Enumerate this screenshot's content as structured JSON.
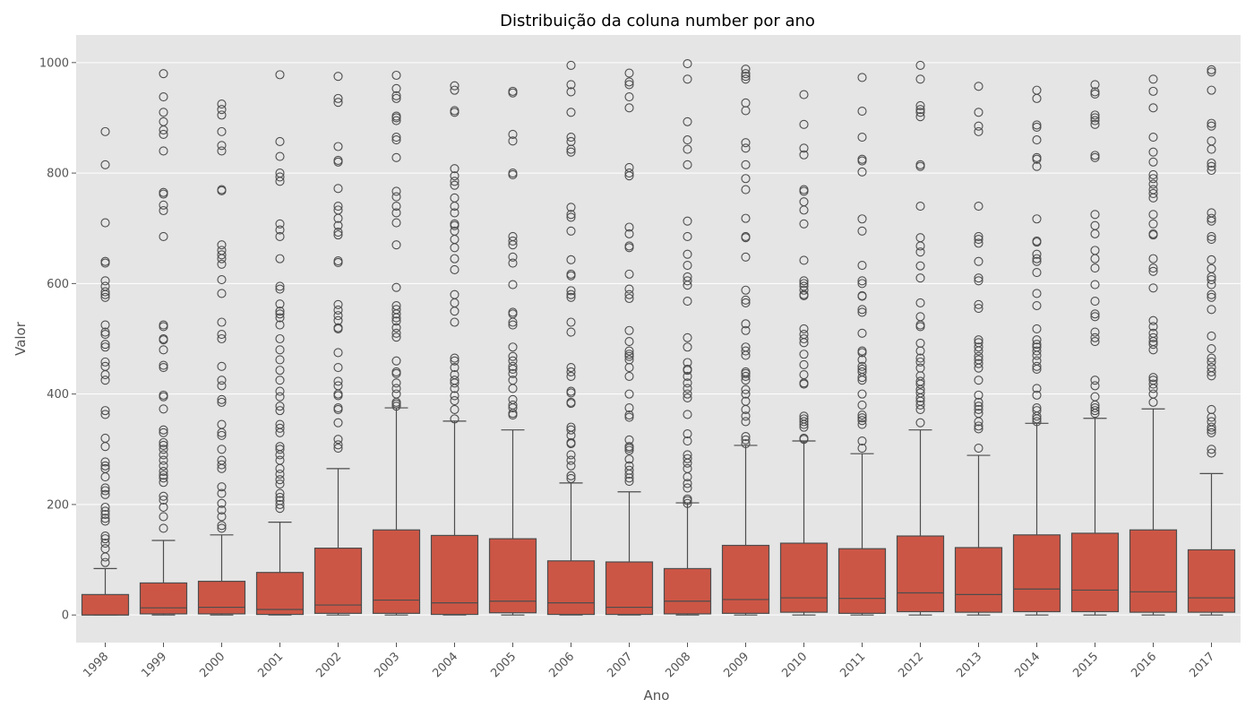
{
  "chart_data": {
    "type": "box",
    "title": "Distribuição da coluna number por ano",
    "xlabel": "Ano",
    "ylabel": "Valor",
    "ylim": [
      -50,
      1050
    ],
    "yticks": [
      0,
      200,
      400,
      600,
      800,
      1000
    ],
    "ytick_labels": [
      "0",
      "200",
      "400",
      "600",
      "800",
      "1000"
    ],
    "categories": [
      "1998",
      "1999",
      "2000",
      "2001",
      "2002",
      "2003",
      "2004",
      "2005",
      "2006",
      "2007",
      "2008",
      "2009",
      "2010",
      "2011",
      "2012",
      "2013",
      "2014",
      "2015",
      "2016",
      "2017"
    ],
    "grid": true,
    "colors": {
      "box_fill": "#cc5645",
      "box_edge": "#4d4d4d",
      "plot_bg": "#e5e5e5",
      "grid": "#ffffff"
    },
    "boxes": [
      {
        "year": "1998",
        "whisker_low": 0,
        "q1": 0,
        "median": 0,
        "q3": 37,
        "whisker_high": 84,
        "outliers": [
          875,
          815,
          710,
          640,
          637,
          605,
          595,
          585,
          580,
          575,
          525,
          512,
          508,
          490,
          485,
          458,
          450,
          435,
          425,
          370,
          363,
          320,
          305,
          277,
          270,
          265,
          250,
          230,
          225,
          218,
          195,
          188,
          182,
          175,
          170,
          143,
          138,
          130,
          120,
          105,
          95
        ]
      },
      {
        "year": "1999",
        "whisker_low": 0,
        "q1": 2,
        "median": 13,
        "q3": 58,
        "whisker_high": 135,
        "outliers": [
          980,
          938,
          910,
          893,
          878,
          870,
          840,
          765,
          762,
          742,
          732,
          685,
          525,
          522,
          500,
          498,
          480,
          452,
          448,
          398,
          395,
          373,
          335,
          330,
          312,
          307,
          300,
          290,
          280,
          270,
          260,
          253,
          248,
          240,
          215,
          208,
          195,
          178,
          157
        ]
      },
      {
        "year": "2000",
        "whisker_low": 0,
        "q1": 2,
        "median": 14,
        "q3": 61,
        "whisker_high": 145,
        "outliers": [
          925,
          915,
          905,
          875,
          850,
          840,
          770,
          768,
          670,
          660,
          652,
          645,
          635,
          607,
          582,
          530,
          508,
          500,
          450,
          425,
          415,
          390,
          385,
          345,
          330,
          325,
          300,
          280,
          272,
          265,
          232,
          220,
          202,
          190,
          178,
          162,
          157
        ]
      },
      {
        "year": "2001",
        "whisker_low": 0,
        "q1": 1,
        "median": 10,
        "q3": 77,
        "whisker_high": 168,
        "outliers": [
          978,
          857,
          830,
          800,
          793,
          785,
          708,
          697,
          685,
          645,
          595,
          590,
          563,
          550,
          545,
          538,
          525,
          500,
          480,
          462,
          443,
          425,
          405,
          395,
          378,
          370,
          345,
          338,
          330,
          305,
          300,
          290,
          280,
          265,
          255,
          245,
          237,
          220,
          213,
          207,
          200,
          193
        ]
      },
      {
        "year": "2002",
        "whisker_low": 0,
        "q1": 3,
        "median": 18,
        "q3": 121,
        "whisker_high": 265,
        "outliers": [
          975,
          935,
          928,
          848,
          823,
          820,
          772,
          740,
          733,
          718,
          705,
          693,
          688,
          641,
          638,
          562,
          552,
          542,
          533,
          520,
          518,
          475,
          448,
          423,
          415,
          400,
          397,
          375,
          372,
          348,
          318,
          308,
          302
        ]
      },
      {
        "year": "2003",
        "whisker_low": 0,
        "q1": 3,
        "median": 27,
        "q3": 154,
        "whisker_high": 375,
        "outliers": [
          977,
          953,
          940,
          935,
          903,
          900,
          895,
          865,
          860,
          828,
          767,
          757,
          740,
          728,
          710,
          670,
          593,
          560,
          553,
          545,
          538,
          532,
          520,
          510,
          503,
          460,
          440,
          437,
          420,
          410,
          400,
          385,
          382,
          378
        ]
      },
      {
        "year": "2004",
        "whisker_low": 0,
        "q1": 1,
        "median": 22,
        "q3": 144,
        "whisker_high": 351,
        "outliers": [
          958,
          950,
          913,
          910,
          808,
          795,
          785,
          778,
          755,
          740,
          728,
          708,
          705,
          695,
          680,
          665,
          645,
          625,
          580,
          565,
          550,
          530,
          465,
          460,
          448,
          435,
          425,
          420,
          410,
          397,
          388,
          372,
          355
        ]
      },
      {
        "year": "2005",
        "whisker_low": 0,
        "q1": 4,
        "median": 25,
        "q3": 138,
        "whisker_high": 335,
        "outliers": [
          948,
          945,
          870,
          858,
          800,
          797,
          685,
          677,
          670,
          648,
          637,
          598,
          548,
          545,
          530,
          525,
          485,
          468,
          460,
          450,
          445,
          437,
          425,
          410,
          390,
          380,
          375,
          365,
          362
        ]
      },
      {
        "year": "2006",
        "whisker_low": 0,
        "q1": 1,
        "median": 22,
        "q3": 98,
        "whisker_high": 239,
        "outliers": [
          995,
          960,
          947,
          910,
          865,
          857,
          843,
          838,
          738,
          725,
          720,
          695,
          643,
          617,
          614,
          587,
          580,
          575,
          530,
          512,
          448,
          440,
          432,
          405,
          402,
          385,
          383,
          340,
          335,
          325,
          312,
          310,
          290,
          280,
          270,
          252,
          247
        ]
      },
      {
        "year": "2007",
        "whisker_low": 0,
        "q1": 1,
        "median": 14,
        "q3": 96,
        "whisker_high": 223,
        "outliers": [
          981,
          965,
          960,
          938,
          918,
          810,
          800,
          795,
          702,
          690,
          668,
          665,
          617,
          590,
          580,
          573,
          515,
          495,
          478,
          472,
          468,
          462,
          448,
          432,
          400,
          375,
          362,
          358,
          317,
          305,
          302,
          298,
          282,
          270,
          262,
          255,
          248,
          242
        ]
      },
      {
        "year": "2008",
        "whisker_low": 0,
        "q1": 2,
        "median": 25,
        "q3": 84,
        "whisker_high": 203,
        "outliers": [
          998,
          970,
          893,
          860,
          843,
          815,
          713,
          685,
          653,
          633,
          612,
          605,
          597,
          568,
          502,
          485,
          457,
          445,
          443,
          432,
          420,
          410,
          400,
          393,
          363,
          328,
          315,
          290,
          283,
          275,
          265,
          250,
          238,
          230,
          210,
          207,
          202
        ]
      },
      {
        "year": "2009",
        "whisker_low": 0,
        "q1": 3,
        "median": 28,
        "q3": 126,
        "whisker_high": 307,
        "outliers": [
          988,
          980,
          975,
          970,
          927,
          913,
          855,
          845,
          815,
          790,
          770,
          718,
          685,
          683,
          648,
          588,
          570,
          565,
          527,
          515,
          485,
          478,
          470,
          440,
          437,
          432,
          425,
          408,
          400,
          387,
          372,
          360,
          350,
          323,
          317,
          310
        ]
      },
      {
        "year": "2010",
        "whisker_low": 0,
        "q1": 5,
        "median": 31,
        "q3": 130,
        "whisker_high": 315,
        "outliers": [
          942,
          888,
          845,
          833,
          770,
          767,
          748,
          733,
          708,
          642,
          605,
          600,
          595,
          588,
          580,
          578,
          518,
          508,
          500,
          493,
          472,
          453,
          435,
          420,
          418,
          360,
          355,
          350,
          345,
          340,
          320,
          318
        ]
      },
      {
        "year": "2011",
        "whisker_low": 0,
        "q1": 3,
        "median": 30,
        "q3": 120,
        "whisker_high": 292,
        "outliers": [
          973,
          912,
          865,
          825,
          822,
          802,
          717,
          695,
          633,
          605,
          600,
          578,
          577,
          553,
          548,
          510,
          478,
          475,
          462,
          450,
          445,
          440,
          430,
          425,
          400,
          380,
          362,
          357,
          352,
          345,
          315,
          302
        ]
      },
      {
        "year": "2012",
        "whisker_low": 0,
        "q1": 6,
        "median": 40,
        "q3": 143,
        "whisker_high": 335,
        "outliers": [
          995,
          970,
          922,
          915,
          910,
          902,
          815,
          812,
          740,
          683,
          668,
          657,
          632,
          610,
          565,
          540,
          525,
          522,
          492,
          478,
          465,
          458,
          447,
          433,
          423,
          418,
          408,
          402,
          393,
          387,
          380,
          372,
          348
        ]
      },
      {
        "year": "2013",
        "whisker_low": 0,
        "q1": 5,
        "median": 37,
        "q3": 122,
        "whisker_high": 289,
        "outliers": [
          957,
          910,
          885,
          875,
          740,
          685,
          680,
          673,
          640,
          610,
          605,
          562,
          555,
          498,
          493,
          485,
          478,
          468,
          462,
          455,
          447,
          425,
          398,
          385,
          378,
          372,
          365,
          350,
          342,
          337,
          302
        ]
      },
      {
        "year": "2014",
        "whisker_low": 0,
        "q1": 6,
        "median": 47,
        "q3": 145,
        "whisker_high": 347,
        "outliers": [
          950,
          935,
          887,
          883,
          860,
          828,
          825,
          812,
          717,
          677,
          675,
          653,
          645,
          640,
          620,
          582,
          560,
          518,
          498,
          490,
          485,
          478,
          470,
          460,
          450,
          445,
          410,
          398,
          375,
          370,
          360,
          355,
          350
        ]
      },
      {
        "year": "2015",
        "whisker_low": 0,
        "q1": 6,
        "median": 45,
        "q3": 148,
        "whisker_high": 356,
        "outliers": [
          960,
          947,
          943,
          905,
          900,
          895,
          888,
          832,
          828,
          725,
          705,
          690,
          660,
          645,
          628,
          598,
          568,
          545,
          540,
          512,
          502,
          495,
          425,
          415,
          395,
          380,
          375,
          370,
          365
        ]
      },
      {
        "year": "2016",
        "whisker_low": 0,
        "q1": 5,
        "median": 42,
        "q3": 154,
        "whisker_high": 373,
        "outliers": [
          970,
          948,
          918,
          865,
          838,
          820,
          797,
          790,
          780,
          770,
          763,
          755,
          725,
          708,
          690,
          688,
          645,
          628,
          622,
          592,
          533,
          522,
          510,
          502,
          495,
          490,
          480,
          430,
          425,
          418,
          410,
          400,
          385
        ]
      },
      {
        "year": "2017",
        "whisker_low": 0,
        "q1": 5,
        "median": 31,
        "q3": 118,
        "whisker_high": 256,
        "outliers": [
          987,
          983,
          950,
          890,
          885,
          858,
          843,
          818,
          812,
          805,
          728,
          718,
          713,
          685,
          680,
          643,
          627,
          612,
          607,
          598,
          580,
          575,
          553,
          505,
          482,
          465,
          458,
          448,
          440,
          433,
          372,
          358,
          350,
          340,
          335,
          330,
          300,
          293
        ]
      }
    ]
  }
}
